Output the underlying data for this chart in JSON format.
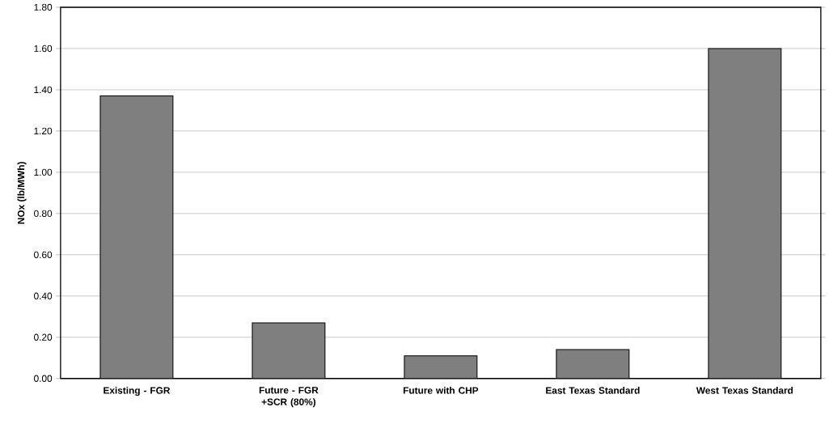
{
  "chart_data": {
    "type": "bar",
    "ylabel": "NOx (lb/MWh)",
    "categories": [
      "Existing - FGR",
      "Future - FGR +SCR (80%)",
      "Future with CHP",
      "East Texas Standard",
      "West Texas Standard"
    ],
    "values": [
      1.37,
      0.27,
      0.11,
      0.14,
      1.6
    ],
    "color": "#7f7f7f",
    "ylim": [
      0,
      1.8
    ],
    "yticks": [
      {
        "value": 0,
        "label": "0.00"
      },
      {
        "value": 0.2,
        "label": "0.20"
      },
      {
        "value": 0.4,
        "label": "0.40"
      },
      {
        "value": 0.6,
        "label": "0.60"
      },
      {
        "value": 0.8,
        "label": "0.80"
      },
      {
        "value": 1.0,
        "label": "1.00"
      },
      {
        "value": 1.2,
        "label": "1.20"
      },
      {
        "value": 1.4,
        "label": "1.40"
      },
      {
        "value": 1.6,
        "label": "1.60"
      },
      {
        "value": 1.8,
        "label": "1.80"
      }
    ],
    "grid": "y"
  }
}
